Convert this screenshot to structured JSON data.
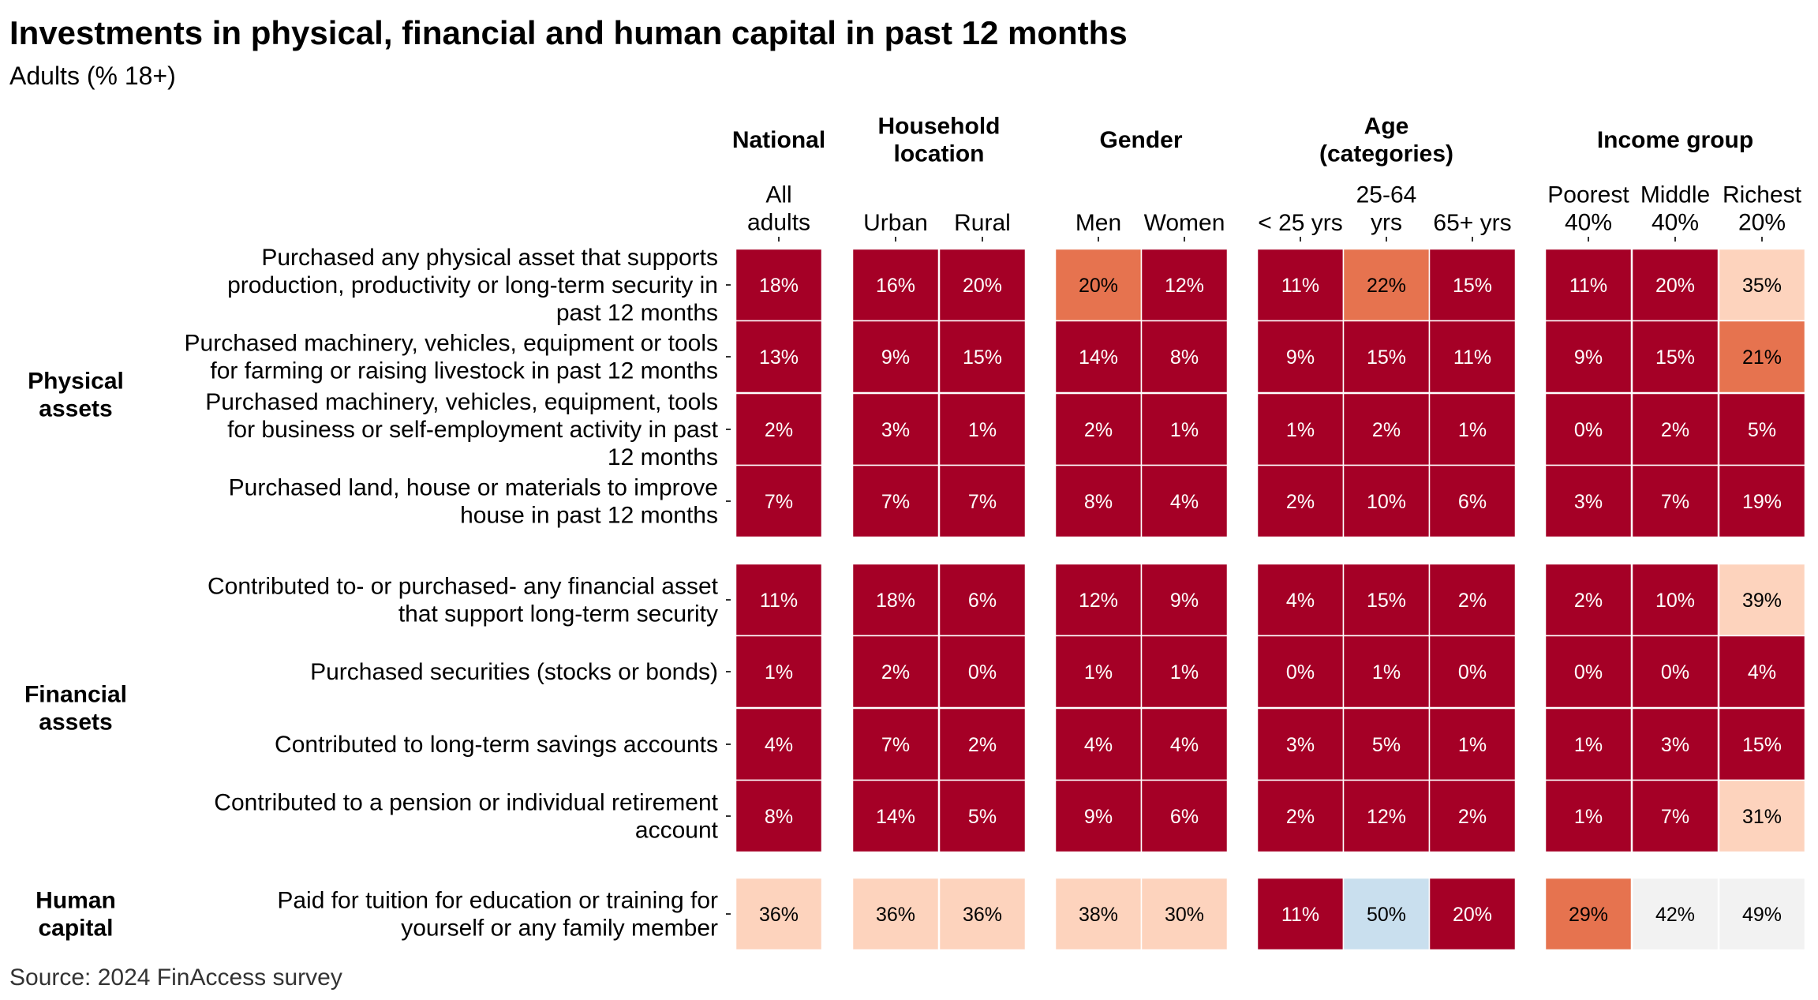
{
  "title": "Investments in physical, financial and human capital in past 12 months",
  "subtitle": "Adults (% 18+)",
  "source": "Source: 2024 FinAccess survey",
  "colors": {
    "dark_red": "#a50026",
    "orange": "#e6734f",
    "light_peach": "#fdd3bd",
    "light_grey": "#f2f2f2",
    "light_blue": "#c9dfee"
  },
  "chart_data": {
    "type": "heatmap",
    "title": "Investments in physical, financial and human capital in past 12 months",
    "subtitle": "Adults (% 18+)",
    "column_groups": [
      {
        "label": "National",
        "columns": [
          "All adults"
        ]
      },
      {
        "label": "Household location",
        "columns": [
          "Urban",
          "Rural"
        ]
      },
      {
        "label": "Gender",
        "columns": [
          "Men",
          "Women"
        ]
      },
      {
        "label": "Age (categories)",
        "columns": [
          "< 25 yrs",
          "25-64 yrs",
          "65+ yrs"
        ]
      },
      {
        "label": "Income group",
        "columns": [
          "Poorest 40%",
          "Middle 40%",
          "Richest 20%"
        ]
      }
    ],
    "sections": [
      {
        "label": "Physical assets",
        "rows": [
          {
            "label": "Purchased any physical asset that supports production, productivity or long-term security in past 12 months",
            "values": [
              18,
              16,
              20,
              20,
              12,
              11,
              22,
              15,
              11,
              20,
              35
            ],
            "colors": [
              "dark_red",
              "dark_red",
              "dark_red",
              "orange",
              "dark_red",
              "dark_red",
              "orange",
              "dark_red",
              "dark_red",
              "dark_red",
              "light_peach"
            ]
          },
          {
            "label": "Purchased machinery, vehicles, equipment or tools for farming or raising livestock in past 12 months",
            "values": [
              13,
              9,
              15,
              14,
              8,
              9,
              15,
              11,
              9,
              15,
              21
            ],
            "colors": [
              "dark_red",
              "dark_red",
              "dark_red",
              "dark_red",
              "dark_red",
              "dark_red",
              "dark_red",
              "dark_red",
              "dark_red",
              "dark_red",
              "orange"
            ]
          },
          {
            "label": "Purchased machinery, vehicles, equipment, tools for business or self-employment activity in past 12 months",
            "values": [
              2,
              3,
              1,
              2,
              1,
              1,
              2,
              1,
              0,
              2,
              5
            ],
            "colors": [
              "dark_red",
              "dark_red",
              "dark_red",
              "dark_red",
              "dark_red",
              "dark_red",
              "dark_red",
              "dark_red",
              "dark_red",
              "dark_red",
              "dark_red"
            ]
          },
          {
            "label": "Purchased land, house or materials to improve house in past 12 months",
            "values": [
              7,
              7,
              7,
              8,
              4,
              2,
              10,
              6,
              3,
              7,
              19
            ],
            "colors": [
              "dark_red",
              "dark_red",
              "dark_red",
              "dark_red",
              "dark_red",
              "dark_red",
              "dark_red",
              "dark_red",
              "dark_red",
              "dark_red",
              "dark_red"
            ]
          }
        ]
      },
      {
        "label": "Financial assets",
        "rows": [
          {
            "label": "Contributed to- or purchased- any financial asset that support long-term security",
            "values": [
              11,
              18,
              6,
              12,
              9,
              4,
              15,
              2,
              2,
              10,
              39
            ],
            "colors": [
              "dark_red",
              "dark_red",
              "dark_red",
              "dark_red",
              "dark_red",
              "dark_red",
              "dark_red",
              "dark_red",
              "dark_red",
              "dark_red",
              "light_peach"
            ]
          },
          {
            "label": "Purchased securities (stocks or bonds)",
            "values": [
              1,
              2,
              0,
              1,
              1,
              0,
              1,
              0,
              0,
              0,
              4
            ],
            "colors": [
              "dark_red",
              "dark_red",
              "dark_red",
              "dark_red",
              "dark_red",
              "dark_red",
              "dark_red",
              "dark_red",
              "dark_red",
              "dark_red",
              "dark_red"
            ]
          },
          {
            "label": "Contributed to long-term savings accounts",
            "values": [
              4,
              7,
              2,
              4,
              4,
              3,
              5,
              1,
              1,
              3,
              15
            ],
            "colors": [
              "dark_red",
              "dark_red",
              "dark_red",
              "dark_red",
              "dark_red",
              "dark_red",
              "dark_red",
              "dark_red",
              "dark_red",
              "dark_red",
              "dark_red"
            ]
          },
          {
            "label": "Contributed to a pension or individual retirement account",
            "values": [
              8,
              14,
              5,
              9,
              6,
              2,
              12,
              2,
              1,
              7,
              31
            ],
            "colors": [
              "dark_red",
              "dark_red",
              "dark_red",
              "dark_red",
              "dark_red",
              "dark_red",
              "dark_red",
              "dark_red",
              "dark_red",
              "dark_red",
              "light_peach"
            ]
          }
        ]
      },
      {
        "label": "Human capital",
        "rows": [
          {
            "label": "Paid for tuition for education or training for yourself or any family member",
            "values": [
              36,
              36,
              36,
              38,
              30,
              11,
              50,
              20,
              29,
              42,
              49
            ],
            "colors": [
              "light_peach",
              "light_peach",
              "light_peach",
              "light_peach",
              "light_peach",
              "dark_red",
              "light_blue",
              "dark_red",
              "orange",
              "light_grey",
              "light_grey"
            ]
          }
        ]
      }
    ]
  }
}
